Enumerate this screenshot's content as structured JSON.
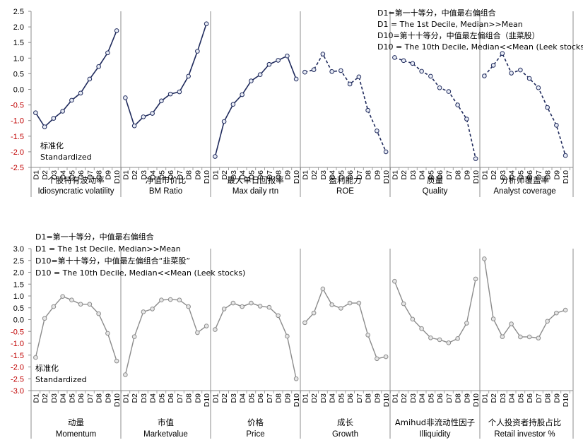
{
  "colors": {
    "panel1_line": "#1f2a5c",
    "panel2_line": "#8c8c8c",
    "negative_tick": "#c00000",
    "axis": "#8c8c8c"
  },
  "chart_data": [
    {
      "type": "line",
      "ylim": [
        -2.5,
        2.5
      ],
      "yticks": [
        2.5,
        2.0,
        1.5,
        1.0,
        0.5,
        0.0,
        -0.5,
        -1.0,
        -1.5,
        -2.0,
        -2.5
      ],
      "ytick_labels": [
        "2.5",
        "2.0",
        "1.5",
        "1.0",
        "0.5",
        "0.0",
        "-0.5",
        "-1.0",
        "-1.5",
        "-2.0",
        "-2.5"
      ],
      "categories": [
        "D1",
        "D2",
        "D3",
        "D4",
        "D5",
        "D6",
        "D7",
        "D8",
        "D9",
        "D10"
      ],
      "annotation_lines": [
        "D1=第一十等分，中值最右偏组合",
        "D1 = The 1st Decile, Median>>Mean",
        "D10=第十十等分，中值最左偏组合（韭菜股）",
        "D10 = The 10th Decile, Median<<Mean (Leek stocks)"
      ],
      "ylabel_lines": [
        "标准化",
        "Standardized"
      ],
      "groups": [
        {
          "cn": "个股特有波动率",
          "en": "Idiosyncratic volatility",
          "values": [
            -0.75,
            -1.2,
            -0.93,
            -0.7,
            -0.35,
            -0.12,
            0.33,
            0.73,
            1.17,
            1.88
          ],
          "dashed": false
        },
        {
          "cn": "净值市价比",
          "en": "BM Ratio",
          "values": [
            -0.27,
            -1.17,
            -0.88,
            -0.77,
            -0.37,
            -0.15,
            -0.08,
            0.42,
            1.22,
            2.1
          ],
          "dashed": false
        },
        {
          "cn": "最大单日回报率",
          "en": "Max  daily rtn",
          "values": [
            -2.15,
            -1.03,
            -0.48,
            -0.17,
            0.27,
            0.47,
            0.8,
            0.93,
            1.07,
            0.33
          ],
          "dashed": false
        },
        {
          "cn": "盈利能力",
          "en": "ROE",
          "values": [
            0.55,
            0.63,
            1.13,
            0.57,
            0.6,
            0.17,
            0.4,
            -0.67,
            -1.33,
            -2.0
          ],
          "dashed": true
        },
        {
          "cn": "质量",
          "en": "Quality",
          "values": [
            1.02,
            0.92,
            0.83,
            0.58,
            0.42,
            0.05,
            -0.07,
            -0.5,
            -0.95,
            -2.22
          ],
          "dashed": true
        },
        {
          "cn": "分析师覆盖率",
          "en": "Analyst coverage",
          "values": [
            0.43,
            0.77,
            1.15,
            0.52,
            0.62,
            0.35,
            0.05,
            -0.58,
            -1.15,
            -2.12
          ],
          "dashed": true
        }
      ]
    },
    {
      "type": "line",
      "ylim": [
        -3.0,
        3.0
      ],
      "yticks": [
        3.0,
        2.5,
        2.0,
        1.5,
        1.0,
        0.5,
        0.0,
        -0.5,
        -1.0,
        -1.5,
        -2.0,
        -2.5,
        -3.0
      ],
      "ytick_labels": [
        "3.0",
        "2.5",
        "2.0",
        "1.5",
        "1.0",
        "0.5",
        "0.0",
        "-0.5",
        "-1.0",
        "-1.5",
        "-2.0",
        "-2.5",
        "-3.0"
      ],
      "categories": [
        "D1",
        "D2",
        "D3",
        "D4",
        "D5",
        "D6",
        "D7",
        "D8",
        "D9",
        "D10"
      ],
      "annotation_lines": [
        "D1=第一十等分，中值最右偏组合",
        "D1 = The 1st Decile, Median>>Mean",
        "D10=第十十等分，中值最左偏组合“韭菜股”",
        "D10 = The 10th Decile, Median<<Mean   (Leek stocks)"
      ],
      "ylabel_lines": [
        "标准化",
        "Standardized"
      ],
      "groups": [
        {
          "cn": "动量",
          "en": "Momentum",
          "values": [
            -1.6,
            0.05,
            0.55,
            0.98,
            0.83,
            0.65,
            0.65,
            0.25,
            -0.58,
            -1.75
          ],
          "dashed": false
        },
        {
          "cn": "市值",
          "en": "Marketvalue",
          "values": [
            -2.33,
            -0.72,
            0.33,
            0.45,
            0.83,
            0.85,
            0.83,
            0.55,
            -0.55,
            -0.27
          ],
          "dashed": false
        },
        {
          "cn": "价格",
          "en": "Price",
          "values": [
            -0.42,
            0.45,
            0.7,
            0.55,
            0.7,
            0.57,
            0.52,
            0.17,
            -0.7,
            -2.5
          ],
          "dashed": false
        },
        {
          "cn": "成长",
          "en": "Growth",
          "values": [
            -0.13,
            0.28,
            1.3,
            0.63,
            0.48,
            0.7,
            0.7,
            -0.65,
            -1.65,
            -1.57
          ],
          "dashed": false
        },
        {
          "cn": "Amihud非流动性因子",
          "en": "Illiquidity",
          "values": [
            1.62,
            0.67,
            0.02,
            -0.38,
            -0.77,
            -0.85,
            -0.98,
            -0.8,
            -0.15,
            1.72
          ],
          "dashed": false
        },
        {
          "cn": "个人投资者持股占比",
          "en": "Retail investor %",
          "values": [
            2.57,
            0.03,
            -0.72,
            -0.18,
            -0.73,
            -0.73,
            -0.78,
            -0.07,
            0.28,
            0.4
          ],
          "dashed": false
        }
      ]
    }
  ]
}
